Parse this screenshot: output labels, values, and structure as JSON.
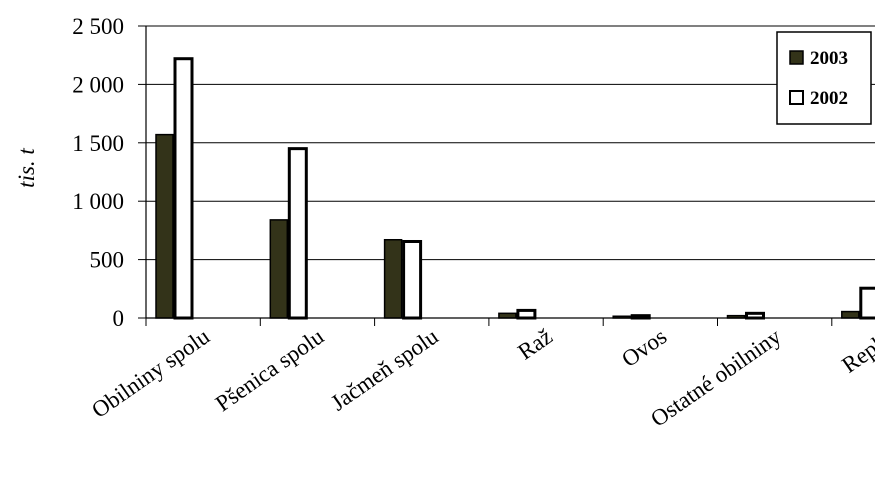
{
  "chart_data": {
    "type": "bar",
    "categories": [
      "Obilniny spolu",
      "Pšenica spolu",
      "Jačmeň spolu",
      "Raž",
      "Ovos",
      "Ostatné obilniny",
      "Repka"
    ],
    "series": [
      {
        "name": "2003",
        "values": [
          1570,
          840,
          670,
          40,
          15,
          20,
          55
        ],
        "color": "#333319"
      },
      {
        "name": "2002",
        "values": [
          2220,
          1450,
          655,
          65,
          20,
          40,
          255
        ],
        "color": "#ffffff"
      }
    ],
    "title": "",
    "xlabel": "",
    "ylabel": "tis. t",
    "ylim": [
      0,
      2500
    ],
    "yticks": [
      0,
      500,
      1000,
      1500,
      2000,
      2500
    ],
    "ytick_labels": [
      "0",
      "500",
      "1 000",
      "1 500",
      "2 000",
      "2 500"
    ],
    "grid": true,
    "legend_position": "top-right"
  }
}
